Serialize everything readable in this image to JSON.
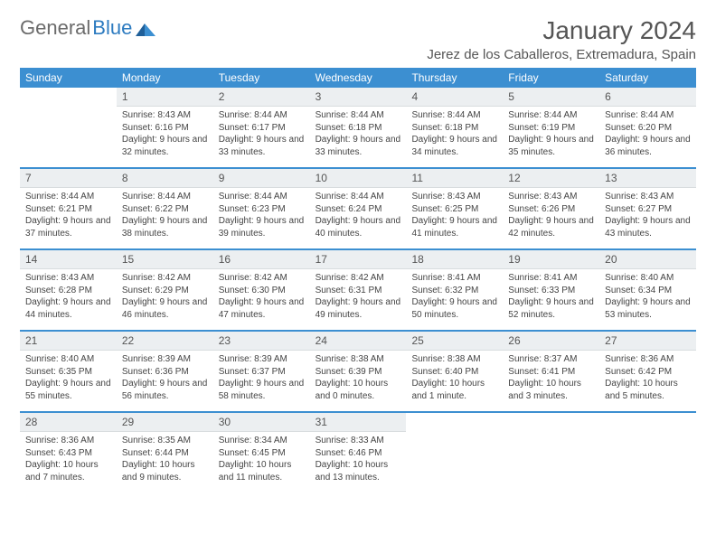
{
  "logo": {
    "text1": "General",
    "text2": "Blue"
  },
  "title": "January 2024",
  "location": "Jerez de los Caballeros, Extremadura, Spain",
  "colors": {
    "header_bg": "#3c8fd1",
    "daynum_bg": "#eceff1",
    "week_border": "#3c8fd1",
    "text": "#444",
    "title_text": "#555"
  },
  "weekdays": [
    "Sunday",
    "Monday",
    "Tuesday",
    "Wednesday",
    "Thursday",
    "Friday",
    "Saturday"
  ],
  "weeks": [
    [
      {
        "n": "",
        "sunrise": "",
        "sunset": "",
        "daylight": ""
      },
      {
        "n": "1",
        "sunrise": "Sunrise: 8:43 AM",
        "sunset": "Sunset: 6:16 PM",
        "daylight": "Daylight: 9 hours and 32 minutes."
      },
      {
        "n": "2",
        "sunrise": "Sunrise: 8:44 AM",
        "sunset": "Sunset: 6:17 PM",
        "daylight": "Daylight: 9 hours and 33 minutes."
      },
      {
        "n": "3",
        "sunrise": "Sunrise: 8:44 AM",
        "sunset": "Sunset: 6:18 PM",
        "daylight": "Daylight: 9 hours and 33 minutes."
      },
      {
        "n": "4",
        "sunrise": "Sunrise: 8:44 AM",
        "sunset": "Sunset: 6:18 PM",
        "daylight": "Daylight: 9 hours and 34 minutes."
      },
      {
        "n": "5",
        "sunrise": "Sunrise: 8:44 AM",
        "sunset": "Sunset: 6:19 PM",
        "daylight": "Daylight: 9 hours and 35 minutes."
      },
      {
        "n": "6",
        "sunrise": "Sunrise: 8:44 AM",
        "sunset": "Sunset: 6:20 PM",
        "daylight": "Daylight: 9 hours and 36 minutes."
      }
    ],
    [
      {
        "n": "7",
        "sunrise": "Sunrise: 8:44 AM",
        "sunset": "Sunset: 6:21 PM",
        "daylight": "Daylight: 9 hours and 37 minutes."
      },
      {
        "n": "8",
        "sunrise": "Sunrise: 8:44 AM",
        "sunset": "Sunset: 6:22 PM",
        "daylight": "Daylight: 9 hours and 38 minutes."
      },
      {
        "n": "9",
        "sunrise": "Sunrise: 8:44 AM",
        "sunset": "Sunset: 6:23 PM",
        "daylight": "Daylight: 9 hours and 39 minutes."
      },
      {
        "n": "10",
        "sunrise": "Sunrise: 8:44 AM",
        "sunset": "Sunset: 6:24 PM",
        "daylight": "Daylight: 9 hours and 40 minutes."
      },
      {
        "n": "11",
        "sunrise": "Sunrise: 8:43 AM",
        "sunset": "Sunset: 6:25 PM",
        "daylight": "Daylight: 9 hours and 41 minutes."
      },
      {
        "n": "12",
        "sunrise": "Sunrise: 8:43 AM",
        "sunset": "Sunset: 6:26 PM",
        "daylight": "Daylight: 9 hours and 42 minutes."
      },
      {
        "n": "13",
        "sunrise": "Sunrise: 8:43 AM",
        "sunset": "Sunset: 6:27 PM",
        "daylight": "Daylight: 9 hours and 43 minutes."
      }
    ],
    [
      {
        "n": "14",
        "sunrise": "Sunrise: 8:43 AM",
        "sunset": "Sunset: 6:28 PM",
        "daylight": "Daylight: 9 hours and 44 minutes."
      },
      {
        "n": "15",
        "sunrise": "Sunrise: 8:42 AM",
        "sunset": "Sunset: 6:29 PM",
        "daylight": "Daylight: 9 hours and 46 minutes."
      },
      {
        "n": "16",
        "sunrise": "Sunrise: 8:42 AM",
        "sunset": "Sunset: 6:30 PM",
        "daylight": "Daylight: 9 hours and 47 minutes."
      },
      {
        "n": "17",
        "sunrise": "Sunrise: 8:42 AM",
        "sunset": "Sunset: 6:31 PM",
        "daylight": "Daylight: 9 hours and 49 minutes."
      },
      {
        "n": "18",
        "sunrise": "Sunrise: 8:41 AM",
        "sunset": "Sunset: 6:32 PM",
        "daylight": "Daylight: 9 hours and 50 minutes."
      },
      {
        "n": "19",
        "sunrise": "Sunrise: 8:41 AM",
        "sunset": "Sunset: 6:33 PM",
        "daylight": "Daylight: 9 hours and 52 minutes."
      },
      {
        "n": "20",
        "sunrise": "Sunrise: 8:40 AM",
        "sunset": "Sunset: 6:34 PM",
        "daylight": "Daylight: 9 hours and 53 minutes."
      }
    ],
    [
      {
        "n": "21",
        "sunrise": "Sunrise: 8:40 AM",
        "sunset": "Sunset: 6:35 PM",
        "daylight": "Daylight: 9 hours and 55 minutes."
      },
      {
        "n": "22",
        "sunrise": "Sunrise: 8:39 AM",
        "sunset": "Sunset: 6:36 PM",
        "daylight": "Daylight: 9 hours and 56 minutes."
      },
      {
        "n": "23",
        "sunrise": "Sunrise: 8:39 AM",
        "sunset": "Sunset: 6:37 PM",
        "daylight": "Daylight: 9 hours and 58 minutes."
      },
      {
        "n": "24",
        "sunrise": "Sunrise: 8:38 AM",
        "sunset": "Sunset: 6:39 PM",
        "daylight": "Daylight: 10 hours and 0 minutes."
      },
      {
        "n": "25",
        "sunrise": "Sunrise: 8:38 AM",
        "sunset": "Sunset: 6:40 PM",
        "daylight": "Daylight: 10 hours and 1 minute."
      },
      {
        "n": "26",
        "sunrise": "Sunrise: 8:37 AM",
        "sunset": "Sunset: 6:41 PM",
        "daylight": "Daylight: 10 hours and 3 minutes."
      },
      {
        "n": "27",
        "sunrise": "Sunrise: 8:36 AM",
        "sunset": "Sunset: 6:42 PM",
        "daylight": "Daylight: 10 hours and 5 minutes."
      }
    ],
    [
      {
        "n": "28",
        "sunrise": "Sunrise: 8:36 AM",
        "sunset": "Sunset: 6:43 PM",
        "daylight": "Daylight: 10 hours and 7 minutes."
      },
      {
        "n": "29",
        "sunrise": "Sunrise: 8:35 AM",
        "sunset": "Sunset: 6:44 PM",
        "daylight": "Daylight: 10 hours and 9 minutes."
      },
      {
        "n": "30",
        "sunrise": "Sunrise: 8:34 AM",
        "sunset": "Sunset: 6:45 PM",
        "daylight": "Daylight: 10 hours and 11 minutes."
      },
      {
        "n": "31",
        "sunrise": "Sunrise: 8:33 AM",
        "sunset": "Sunset: 6:46 PM",
        "daylight": "Daylight: 10 hours and 13 minutes."
      },
      {
        "n": "",
        "sunrise": "",
        "sunset": "",
        "daylight": ""
      },
      {
        "n": "",
        "sunrise": "",
        "sunset": "",
        "daylight": ""
      },
      {
        "n": "",
        "sunrise": "",
        "sunset": "",
        "daylight": ""
      }
    ]
  ]
}
